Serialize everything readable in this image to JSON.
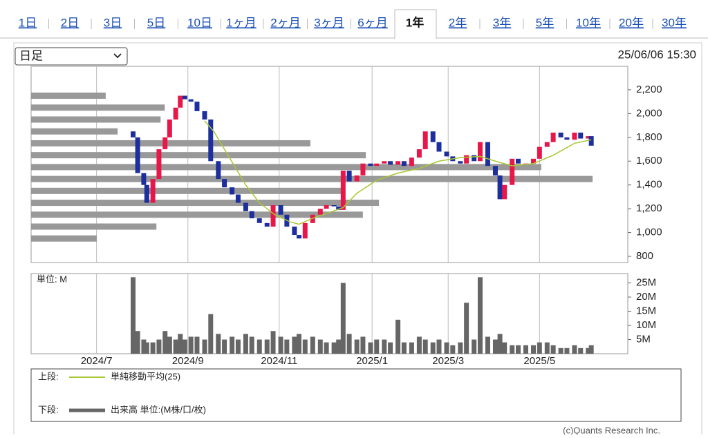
{
  "tabs": [
    "1日",
    "2日",
    "3日",
    "5日",
    "10日",
    "1ヶ月",
    "2ヶ月",
    "3ヶ月",
    "6ヶ月",
    "1年",
    "2年",
    "3年",
    "5年",
    "10年",
    "20年",
    "30年"
  ],
  "active_tab": "1年",
  "select": "日足",
  "timestamp": "25/06/06 15:30",
  "chart_data": {
    "type": "candlestick",
    "x": [
      67,
      70,
      74,
      76,
      80,
      84,
      88,
      91,
      95,
      98,
      101,
      105,
      109,
      114,
      118,
      123,
      127,
      132,
      136,
      141,
      145,
      150,
      155,
      159,
      164,
      168,
      173,
      176,
      180,
      185,
      190,
      194,
      199,
      202,
      205,
      209,
      214,
      218,
      223,
      227,
      232,
      236,
      241,
      245,
      250,
      255,
      259,
      264,
      268,
      273,
      277,
      282,
      286,
      291,
      295,
      300,
      305,
      308,
      311,
      316,
      320,
      325,
      330,
      334,
      339,
      343,
      348,
      352,
      357,
      361,
      366,
      368
    ],
    "open": [
      1850,
      1800,
      1500,
      1400,
      1250,
      1450,
      1700,
      1800,
      1950,
      2050,
      2150,
      2120,
      2100,
      2020,
      1950,
      1600,
      1450,
      1380,
      1320,
      1250,
      1180,
      1120,
      1080,
      1050,
      1230,
      1150,
      1050,
      980,
      950,
      1080,
      1150,
      1200,
      1230,
      1220,
      1190,
      1520,
      1430,
      1480,
      1580,
      1560,
      1580,
      1600,
      1570,
      1600,
      1560,
      1630,
      1700,
      1850,
      1760,
      1680,
      1640,
      1600,
      1580,
      1650,
      1600,
      1760,
      1560,
      1480,
      1280,
      1400,
      1620,
      1580,
      1580,
      1620,
      1720,
      1760,
      1840,
      1800,
      1780,
      1840,
      1790,
      1810
    ],
    "close": [
      1800,
      1500,
      1400,
      1250,
      1450,
      1700,
      1800,
      1950,
      2050,
      2150,
      2120,
      2100,
      2020,
      1950,
      1600,
      1450,
      1380,
      1320,
      1250,
      1180,
      1120,
      1080,
      1050,
      1230,
      1150,
      1050,
      980,
      950,
      1080,
      1150,
      1200,
      1230,
      1220,
      1190,
      1520,
      1430,
      1480,
      1580,
      1560,
      1580,
      1600,
      1570,
      1600,
      1560,
      1630,
      1700,
      1850,
      1760,
      1680,
      1640,
      1600,
      1580,
      1650,
      1600,
      1760,
      1560,
      1480,
      1280,
      1400,
      1620,
      1580,
      1580,
      1620,
      1720,
      1760,
      1840,
      1800,
      1780,
      1840,
      1790,
      1810,
      1730
    ],
    "up_color": "#e8174a",
    "down_color": "#1c2f9c",
    "xlim": [
      0,
      392
    ],
    "xticks": [
      {
        "value": 43,
        "label": "2024/7"
      },
      {
        "value": 103,
        "label": "2024/9"
      },
      {
        "value": 163,
        "label": "2024/11"
      },
      {
        "value": 224,
        "label": "2025/1"
      },
      {
        "value": 274,
        "label": "2025/3"
      },
      {
        "value": 334,
        "label": "2025/5"
      }
    ],
    "ylim": [
      748,
      2397
    ],
    "yticks": [
      800,
      {
        "value": 1000,
        "label": "1,000"
      },
      {
        "value": 1200,
        "label": "1,200"
      },
      {
        "value": 1400,
        "label": "1,400"
      },
      {
        "value": 1600,
        "label": "1,600"
      },
      {
        "value": 1800,
        "label": "1,800"
      },
      {
        "value": 2000,
        "label": "2,000"
      },
      {
        "value": 2200,
        "label": "2,200"
      }
    ],
    "moving_average": {
      "name": "単純移動平均(25)",
      "color": "#a8c832",
      "x": [
        114,
        120,
        127,
        134,
        141,
        150,
        160,
        170,
        176,
        185,
        194,
        205,
        214,
        227,
        241,
        255,
        268,
        282,
        295,
        305,
        316,
        330,
        343,
        357,
        368
      ],
      "values": [
        1940,
        1850,
        1700,
        1550,
        1400,
        1250,
        1150,
        1090,
        1070,
        1120,
        1160,
        1210,
        1330,
        1440,
        1500,
        1540,
        1600,
        1630,
        1640,
        1600,
        1560,
        1580,
        1650,
        1750,
        1780
      ]
    },
    "price_profile": {
      "color": "#999999",
      "levels": [
        2150,
        2050,
        1950,
        1850,
        1750,
        1650,
        1550,
        1450,
        1350,
        1250,
        1150,
        1050,
        950
      ],
      "values": [
        12.5,
        22.4,
        21.7,
        14.5,
        46.8,
        56.1,
        85.5,
        94.1,
        52,
        58.3,
        55.6,
        21,
        11
      ],
      "xlim": [
        0,
        100
      ]
    },
    "volume": {
      "name": "出来高 単位:(M株/口/枚)",
      "unit_label": "単位: M",
      "color": "#666666",
      "values": [
        27,
        8,
        5,
        4,
        4,
        5,
        8,
        6,
        5,
        7,
        5,
        6,
        6,
        5,
        14,
        7,
        5,
        6,
        5,
        7,
        6,
        5,
        5,
        8,
        6,
        5,
        6,
        7,
        5,
        6,
        5,
        4,
        4,
        5,
        25,
        7,
        5,
        6,
        4,
        5,
        5,
        4,
        12,
        4,
        4,
        6,
        5,
        4,
        5,
        4,
        3,
        4,
        18,
        5,
        27,
        6,
        5,
        7,
        4,
        3,
        3,
        3,
        3,
        4,
        4,
        3,
        2,
        2,
        3,
        2,
        2,
        3
      ],
      "ylim": [
        0,
        28.3
      ],
      "yticks": [
        {
          "value": 5,
          "label": "5M"
        },
        {
          "value": 10,
          "label": "10M"
        },
        {
          "value": 15,
          "label": "15M"
        },
        {
          "value": 20,
          "label": "20M"
        },
        {
          "value": 25,
          "label": "25M"
        }
      ]
    },
    "legend": {
      "upper": "上段:",
      "lower": "下段:"
    },
    "credit": "(c)Quants Research Inc."
  }
}
